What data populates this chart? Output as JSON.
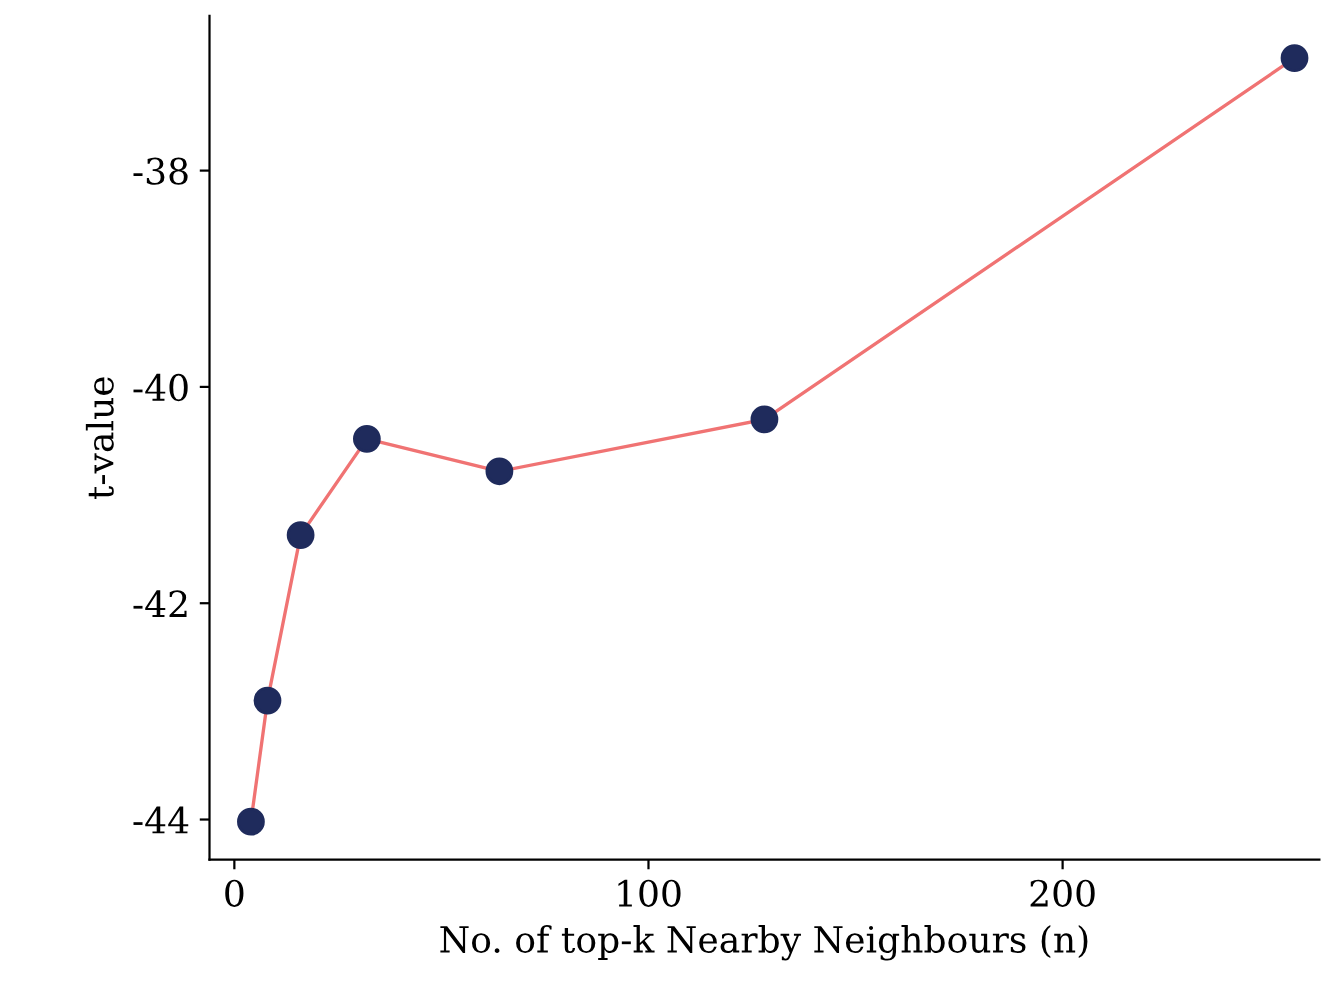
{
  "chart_data": {
    "type": "line",
    "xlabel": "No. of top-k Nearby Neighbours (n)",
    "ylabel": "t-value",
    "x": [
      4,
      8,
      16,
      32,
      64,
      128,
      256
    ],
    "series": [
      {
        "color": "#1f2b5c",
        "values": [
          -44.02,
          -42.9,
          -41.37,
          -40.48,
          -40.78,
          -40.3,
          -36.96
        ]
      }
    ],
    "marker": "circle",
    "line_style": "solid",
    "grid": false,
    "legend": false,
    "xlim": [
      -6,
      262
    ],
    "ylim": [
      -44.37,
      -36.57
    ],
    "xticks": [
      0,
      100,
      200
    ],
    "yticks": [
      {
        "value": -44,
        "label": "-44"
      },
      {
        "value": -42,
        "label": "-42"
      },
      {
        "value": -40,
        "label": "-40"
      },
      {
        "value": -38,
        "label": "-38"
      }
    ]
  }
}
